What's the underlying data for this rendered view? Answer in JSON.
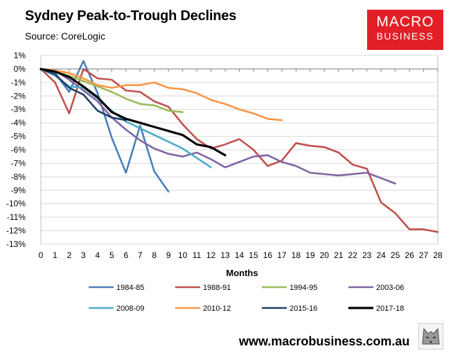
{
  "header": {
    "title": "Sydney Peak-to-Trough Declines",
    "source": "Source: CoreLogic"
  },
  "logo": {
    "line1": "MACRO",
    "line2": "BUSINESS"
  },
  "footer": {
    "url": "www.macrobusiness.com.au"
  },
  "colors": {
    "1984-85": "#4a7ebb",
    "1988-91": "#c0504d",
    "1994-95": "#9bbb59",
    "2003-06": "#8064a2",
    "2008-09": "#4bacc6",
    "2010-12": "#f79646",
    "2015-16": "#1f3d63",
    "2017-18": "#000000"
  },
  "chart_data": {
    "type": "line",
    "title": "Sydney Peak-to-Trough Declines",
    "xlabel": "Months",
    "ylabel": "",
    "xlim": [
      0,
      28
    ],
    "ylim": [
      -13,
      1
    ],
    "x_ticks": [
      "0",
      "1",
      "2",
      "3",
      "4",
      "5",
      "6",
      "7",
      "8",
      "9",
      "10",
      "11",
      "12",
      "13",
      "14",
      "15",
      "16",
      "17",
      "18",
      "19",
      "20",
      "21",
      "22",
      "23",
      "24",
      "25",
      "26",
      "27",
      "28"
    ],
    "y_ticks": [
      "1%",
      "0%",
      "-1%",
      "-2%",
      "-3%",
      "-4%",
      "-5%",
      "-6%",
      "-7%",
      "-8%",
      "-9%",
      "-10%",
      "-11%",
      "-12%",
      "-13%"
    ],
    "legend_position": "bottom",
    "series": [
      {
        "name": "1984-85",
        "values": [
          0,
          -0.3,
          -1.7,
          0.6,
          -1.8,
          -5.1,
          -7.7,
          -4.2,
          -7.6,
          -9.1
        ]
      },
      {
        "name": "1988-91",
        "values": [
          0,
          -1.0,
          -3.3,
          0,
          -0.7,
          -0.8,
          -1.6,
          -1.7,
          -2.4,
          -2.8,
          -4.1,
          -5.2,
          -5.9,
          -5.6,
          -5.2,
          -6.0,
          -7.2,
          -6.8,
          -5.5,
          -5.7,
          -5.8,
          -6.2,
          -7.1,
          -7.4,
          -9.9,
          -10.7,
          -11.9,
          -11.9,
          -12.1
        ]
      },
      {
        "name": "1994-95",
        "values": [
          0,
          -0.2,
          -0.5,
          -0.9,
          -1.3,
          -1.7,
          -2.2,
          -2.6,
          -2.7,
          -3.1,
          -3.2
        ]
      },
      {
        "name": "2003-06",
        "values": [
          0,
          -0.1,
          -0.8,
          -1.6,
          -2.4,
          -3.6,
          -4.5,
          -5.3,
          -5.9,
          -6.3,
          -6.5,
          -6.2,
          -6.7,
          -7.3,
          -6.9,
          -6.5,
          -6.4,
          -6.9,
          -7.2,
          -7.7,
          -7.8,
          -7.9,
          -7.8,
          -7.7,
          -8.1,
          -8.5
        ]
      },
      {
        "name": "2008-09",
        "values": [
          0,
          -0.5,
          -1.3,
          -1.4,
          -2.2,
          -3.1,
          -3.9,
          -4.4,
          -4.9,
          -5.4,
          -5.9,
          -6.6,
          -7.3
        ]
      },
      {
        "name": "2010-12",
        "values": [
          0,
          -0.1,
          -0.3,
          -0.7,
          -1.2,
          -1.4,
          -1.2,
          -1.2,
          -1.0,
          -1.4,
          -1.5,
          -1.8,
          -2.3,
          -2.6,
          -3.0,
          -3.3,
          -3.7,
          -3.8
        ]
      },
      {
        "name": "2015-16",
        "values": [
          0,
          -0.4,
          -1.4,
          -1.9,
          -3.1,
          -3.6,
          -3.8
        ]
      },
      {
        "name": "2017-18",
        "values": [
          0,
          -0.2,
          -0.6,
          -1.3,
          -2.1,
          -3.2,
          -3.7,
          -4.0,
          -4.3,
          -4.6,
          -4.9,
          -5.6,
          -5.8,
          -6.4
        ]
      }
    ]
  }
}
